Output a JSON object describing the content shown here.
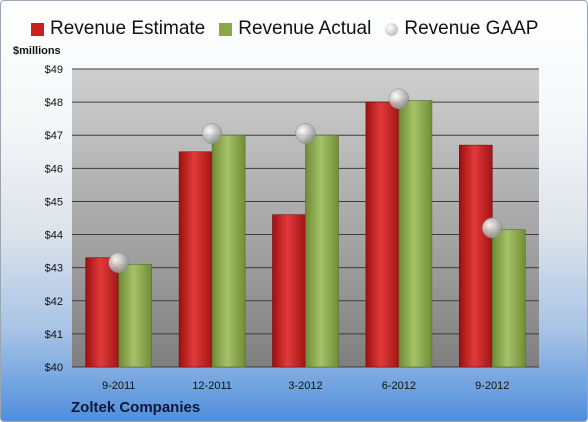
{
  "chart_data": {
    "type": "bar",
    "title": "",
    "ylabel": "$millions",
    "xlabel": "",
    "ylim": [
      40,
      49
    ],
    "y_ticks": [
      "$40",
      "$41",
      "$42",
      "$43",
      "$44",
      "$45",
      "$46",
      "$47",
      "$48",
      "$49"
    ],
    "categories": [
      "9-2011",
      "12-2011",
      "3-2012",
      "6-2012",
      "9-2012"
    ],
    "series": [
      {
        "name": "Revenue Estimate",
        "kind": "bar",
        "color": "#cc1f1f",
        "values": [
          43.3,
          46.5,
          44.6,
          48.0,
          46.7
        ]
      },
      {
        "name": "Revenue Actual",
        "kind": "bar",
        "color": "#8aa84a",
        "values": [
          43.1,
          47.0,
          47.0,
          48.05,
          44.15
        ]
      },
      {
        "name": "Revenue GAAP",
        "kind": "marker",
        "color": "#b8b8b8",
        "values": [
          43.15,
          47.05,
          47.05,
          48.1,
          44.2
        ]
      }
    ],
    "grid": true,
    "legend_position": "top",
    "footer": "Zoltek Companies"
  }
}
